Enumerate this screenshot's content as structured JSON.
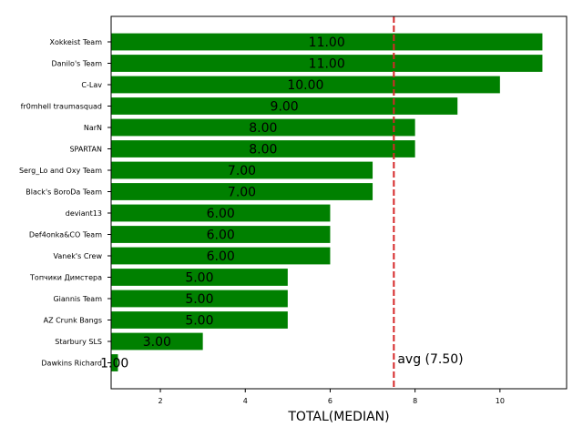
{
  "chart_data": {
    "type": "bar",
    "orientation": "horizontal",
    "title": "",
    "xlabel": "TOTAL(MEDIAN)",
    "ylabel": "",
    "categories": [
      "Xokkeist Team",
      "Danilo's Team",
      "C-Lav",
      "fr0mhell traumasquad",
      "NarN",
      "SPARTAN",
      "Serg_Lo and Oxy Team",
      "Black's BoroDa Team",
      "deviant13",
      "Def4onka&CO Team",
      "Vanek's Crew",
      "Топчики Димстера",
      "Giannis Team",
      "AZ Crunk Bangs",
      "Starbury SLS",
      "Dawkins Richard"
    ],
    "values": [
      11,
      11,
      10,
      9,
      8,
      8,
      7,
      7,
      6,
      6,
      6,
      5,
      5,
      5,
      3,
      1
    ],
    "value_labels": [
      "11.00",
      "11.00",
      "10.00",
      "9.00",
      "8.00",
      "8.00",
      "7.00",
      "7.00",
      "6.00",
      "6.00",
      "6.00",
      "5.00",
      "5.00",
      "5.00",
      "3.00",
      "1.00"
    ],
    "xlim": [
      0.84,
      11.57
    ],
    "xticks": [
      2,
      4,
      6,
      8,
      10
    ],
    "xtick_labels": [
      "2",
      "4",
      "6",
      "8",
      "10"
    ],
    "grid": false,
    "legend": null,
    "bar_color": "#008000",
    "reference_line": {
      "value": 7.5,
      "label": "avg (7.50)",
      "color": "#d62728",
      "style": "dashed"
    }
  },
  "colors": {
    "bar": "#008000",
    "avg_line": "#d62728",
    "axis": "#000000"
  }
}
